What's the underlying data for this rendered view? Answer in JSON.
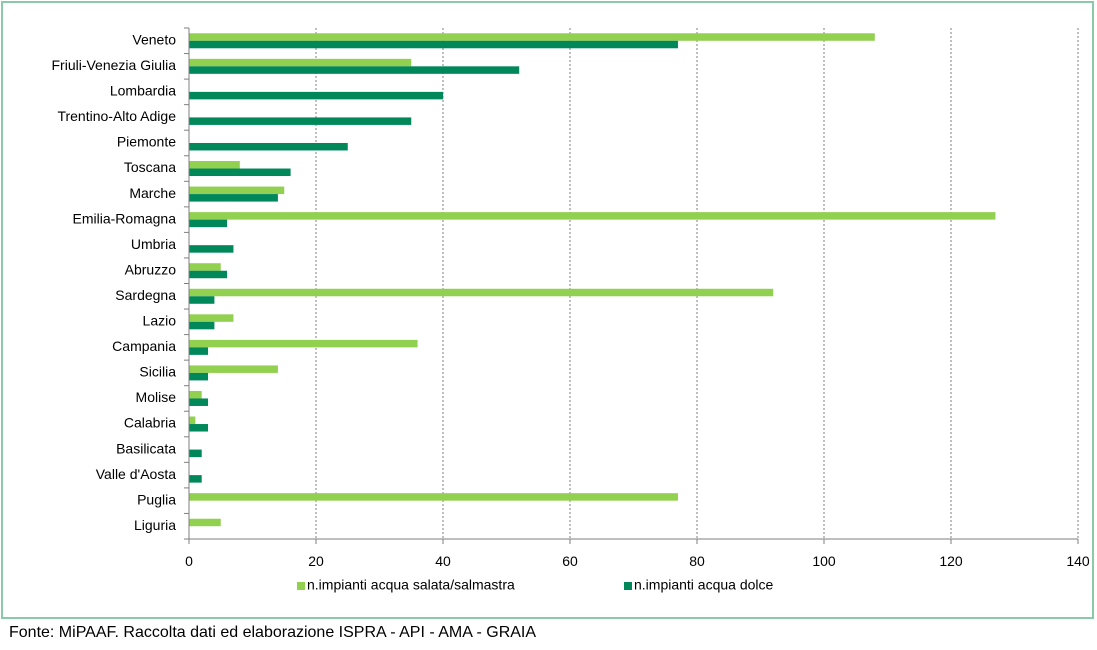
{
  "chart_data": {
    "type": "bar",
    "orientation": "horizontal",
    "categories": [
      "Veneto",
      "Friuli-Venezia Giulia",
      "Lombardia",
      "Trentino-Alto Adige",
      "Piemonte",
      "Toscana",
      "Marche",
      "Emilia-Romagna",
      "Umbria",
      "Abruzzo",
      "Sardegna",
      "Lazio",
      "Campania",
      "Sicilia",
      "Molise",
      "Calabria",
      "Basilicata",
      "Valle d'Aosta",
      "Puglia",
      "Liguria"
    ],
    "series": [
      {
        "name": "n.impianti acqua salata/salmastra",
        "color": "#92d050",
        "values": [
          108,
          35,
          0,
          0,
          0,
          8,
          15,
          127,
          0,
          5,
          92,
          7,
          36,
          14,
          2,
          1,
          0,
          0,
          77,
          5
        ]
      },
      {
        "name": "n.impianti acqua dolce",
        "color": "#00875a",
        "values": [
          77,
          52,
          40,
          35,
          25,
          16,
          14,
          6,
          7,
          6,
          4,
          4,
          3,
          3,
          3,
          3,
          2,
          2,
          0,
          0
        ]
      }
    ],
    "xlim": [
      0,
      140
    ],
    "xticks": [
      "0",
      "20",
      "40",
      "60",
      "80",
      "100",
      "120",
      "140"
    ],
    "grid": "vertical dotted",
    "legend": "bottom",
    "xlabel": "",
    "ylabel": "",
    "title": ""
  },
  "source_note": "Fonte: MiPAAF. Raccolta dati ed elaborazione ISPRA - API - AMA - GRAIA"
}
